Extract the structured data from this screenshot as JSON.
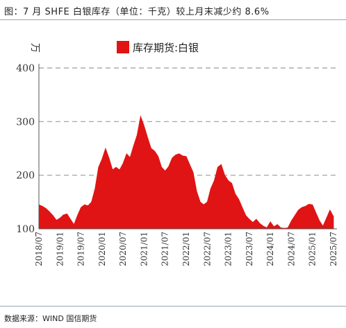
{
  "header": {
    "title": "图：7 月 SHFE 白银库存（单位：千克）较上月末减少约 8.6%"
  },
  "footer": {
    "source": "数据来源：WIND 国信期货"
  },
  "colors": {
    "series": "#e01414",
    "grid": "#9a9a9a",
    "axis": "#555555",
    "rule": "#9aa3ad"
  },
  "chart_data": {
    "type": "area",
    "title": "",
    "xlabel": "",
    "ylabel": "万",
    "ylim": [
      100,
      400
    ],
    "yticks": [
      "100",
      "200",
      "300",
      "400"
    ],
    "ytick_values": [
      100,
      200,
      300,
      400
    ],
    "grid": "horizontal dashed",
    "legend": "top-center",
    "xlim": [
      "2018-07",
      "2025-08"
    ],
    "xticks": [
      "2018/07",
      "2019/01",
      "2019/07",
      "2020/01",
      "2020/07",
      "2021/01",
      "2021/07",
      "2022/01",
      "2022/07",
      "2023/01",
      "2023/07",
      "2024/01",
      "2024/07",
      "2025/01",
      "2025/07"
    ],
    "series": [
      {
        "name": "库存期货:白银",
        "points": [
          [
            "2018-07",
            145
          ],
          [
            "2018-08",
            142
          ],
          [
            "2018-09",
            138
          ],
          [
            "2018-10",
            132
          ],
          [
            "2018-11",
            125
          ],
          [
            "2018-12",
            116
          ],
          [
            "2019-01",
            120
          ],
          [
            "2019-02",
            126
          ],
          [
            "2019-03",
            128
          ],
          [
            "2019-04",
            118
          ],
          [
            "2019-05",
            108
          ],
          [
            "2019-06",
            125
          ],
          [
            "2019-07",
            140
          ],
          [
            "2019-08",
            145
          ],
          [
            "2019-09",
            143
          ],
          [
            "2019-10",
            150
          ],
          [
            "2019-11",
            175
          ],
          [
            "2019-12",
            215
          ],
          [
            "2020-01",
            230
          ],
          [
            "2020-02",
            250
          ],
          [
            "2020-03",
            232
          ],
          [
            "2020-04",
            210
          ],
          [
            "2020-05",
            215
          ],
          [
            "2020-06",
            210
          ],
          [
            "2020-07",
            222
          ],
          [
            "2020-08",
            240
          ],
          [
            "2020-09",
            233
          ],
          [
            "2020-10",
            255
          ],
          [
            "2020-11",
            275
          ],
          [
            "2020-12",
            310
          ],
          [
            "2021-01",
            292
          ],
          [
            "2021-02",
            270
          ],
          [
            "2021-03",
            250
          ],
          [
            "2021-04",
            245
          ],
          [
            "2021-05",
            235
          ],
          [
            "2021-06",
            215
          ],
          [
            "2021-07",
            208
          ],
          [
            "2021-08",
            216
          ],
          [
            "2021-09",
            232
          ],
          [
            "2021-10",
            238
          ],
          [
            "2021-11",
            240
          ],
          [
            "2021-12",
            236
          ],
          [
            "2022-01",
            235
          ],
          [
            "2022-02",
            220
          ],
          [
            "2022-03",
            205
          ],
          [
            "2022-04",
            170
          ],
          [
            "2022-05",
            150
          ],
          [
            "2022-06",
            145
          ],
          [
            "2022-07",
            150
          ],
          [
            "2022-08",
            175
          ],
          [
            "2022-09",
            190
          ],
          [
            "2022-10",
            215
          ],
          [
            "2022-11",
            220
          ],
          [
            "2022-12",
            200
          ],
          [
            "2023-01",
            190
          ],
          [
            "2023-02",
            185
          ],
          [
            "2023-03",
            165
          ],
          [
            "2023-04",
            155
          ],
          [
            "2023-05",
            140
          ],
          [
            "2023-06",
            125
          ],
          [
            "2023-07",
            118
          ],
          [
            "2023-08",
            112
          ],
          [
            "2023-09",
            118
          ],
          [
            "2023-10",
            110
          ],
          [
            "2023-11",
            105
          ],
          [
            "2023-12",
            102
          ],
          [
            "2024-01",
            113
          ],
          [
            "2024-02",
            104
          ],
          [
            "2024-03",
            108
          ],
          [
            "2024-04",
            102
          ],
          [
            "2024-05",
            101
          ],
          [
            "2024-06",
            102
          ],
          [
            "2024-07",
            115
          ],
          [
            "2024-08",
            125
          ],
          [
            "2024-09",
            135
          ],
          [
            "2024-10",
            140
          ],
          [
            "2024-11",
            142
          ],
          [
            "2024-12",
            146
          ],
          [
            "2025-01",
            145
          ],
          [
            "2025-02",
            130
          ],
          [
            "2025-03",
            115
          ],
          [
            "2025-04",
            105
          ],
          [
            "2025-05",
            120
          ],
          [
            "2025-06",
            135
          ],
          [
            "2025-07",
            123
          ]
        ]
      }
    ]
  }
}
